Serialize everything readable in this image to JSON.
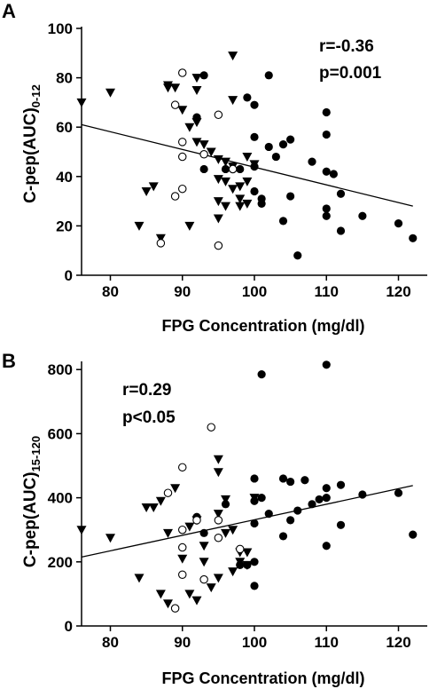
{
  "chart_data": [
    {
      "type": "scatter",
      "panel": "A",
      "xlabel": "FPG Concentration (mg/dl)",
      "ylabel_main": "C-pep(AUC)",
      "ylabel_sub": "0-12",
      "xlim": [
        76,
        124
      ],
      "ylim": [
        0,
        100
      ],
      "xticks": [
        80,
        90,
        100,
        110,
        120
      ],
      "yticks": [
        0,
        20,
        40,
        60,
        80,
        100
      ],
      "annotations": [
        "r=-0.36",
        "p=0.001"
      ],
      "trendline": {
        "x": [
          76,
          122
        ],
        "y": [
          61,
          28
        ]
      },
      "series": [
        {
          "marker": "triangle-down",
          "points": [
            [
              76,
              70
            ],
            [
              80,
              74
            ],
            [
              84,
              20
            ],
            [
              85,
              34
            ],
            [
              86,
              36
            ],
            [
              87,
              15
            ],
            [
              88,
              76
            ],
            [
              88,
              77
            ],
            [
              89,
              76
            ],
            [
              90,
              67
            ],
            [
              91,
              60
            ],
            [
              91,
              20
            ],
            [
              92,
              80
            ],
            [
              92,
              75
            ],
            [
              92,
              62
            ],
            [
              92,
              54
            ],
            [
              93,
              53
            ],
            [
              94,
              50
            ],
            [
              95,
              47
            ],
            [
              95,
              39
            ],
            [
              95,
              30
            ],
            [
              95,
              23
            ],
            [
              96,
              46
            ],
            [
              96,
              38
            ],
            [
              96,
              28
            ],
            [
              97,
              89
            ],
            [
              97,
              71
            ],
            [
              97,
              44
            ],
            [
              97,
              35
            ],
            [
              98,
              36
            ],
            [
              98,
              31
            ],
            [
              98,
              28
            ],
            [
              99,
              48
            ],
            [
              99,
              38
            ],
            [
              99,
              29
            ],
            [
              100,
              45
            ]
          ]
        },
        {
          "marker": "filled-circle",
          "points": [
            [
              92,
              64
            ],
            [
              93,
              81
            ],
            [
              93,
              43
            ],
            [
              96,
              43
            ],
            [
              98,
              43
            ],
            [
              99,
              72
            ],
            [
              100,
              69
            ],
            [
              100,
              56
            ],
            [
              100,
              44
            ],
            [
              100,
              34
            ],
            [
              101,
              31
            ],
            [
              101,
              29
            ],
            [
              102,
              81
            ],
            [
              102,
              52
            ],
            [
              103,
              48
            ],
            [
              104,
              53
            ],
            [
              104,
              22
            ],
            [
              105,
              55
            ],
            [
              105,
              32
            ],
            [
              106,
              8
            ],
            [
              108,
              46
            ],
            [
              110,
              66
            ],
            [
              110,
              57
            ],
            [
              110,
              42
            ],
            [
              110,
              27
            ],
            [
              110,
              24
            ],
            [
              111,
              41
            ],
            [
              112,
              33
            ],
            [
              112,
              18
            ],
            [
              115,
              24
            ],
            [
              120,
              21
            ],
            [
              122,
              15
            ]
          ]
        },
        {
          "marker": "open-circle",
          "points": [
            [
              87,
              13
            ],
            [
              89,
              69
            ],
            [
              89,
              32
            ],
            [
              90,
              82
            ],
            [
              90,
              54
            ],
            [
              90,
              48
            ],
            [
              90,
              35
            ],
            [
              93,
              49
            ],
            [
              95,
              65
            ],
            [
              95,
              12
            ],
            [
              97,
              43
            ]
          ]
        }
      ]
    },
    {
      "type": "scatter",
      "panel": "B",
      "xlabel": "FPG Concentration (mg/dl)",
      "ylabel_main": "C-pep(AUC)",
      "ylabel_sub": "15-120",
      "xlim": [
        76,
        124
      ],
      "ylim": [
        0,
        820
      ],
      "xticks": [
        80,
        90,
        100,
        110,
        120
      ],
      "yticks": [
        0,
        200,
        400,
        600,
        800
      ],
      "annotations": [
        "r=0.29",
        "p<0.05"
      ],
      "trendline": {
        "x": [
          76,
          122
        ],
        "y": [
          215,
          438
        ]
      },
      "series": [
        {
          "marker": "triangle-down",
          "points": [
            [
              76,
              300
            ],
            [
              80,
              275
            ],
            [
              84,
              150
            ],
            [
              85,
              370
            ],
            [
              86,
              370
            ],
            [
              87,
              390
            ],
            [
              87,
              100
            ],
            [
              88,
              290
            ],
            [
              88,
              70
            ],
            [
              89,
              430
            ],
            [
              90,
              210
            ],
            [
              91,
              310
            ],
            [
              91,
              100
            ],
            [
              92,
              80
            ],
            [
              92,
              330
            ],
            [
              93,
              250
            ],
            [
              93,
              200
            ],
            [
              94,
              120
            ],
            [
              95,
              520
            ],
            [
              95,
              480
            ],
            [
              95,
              350
            ],
            [
              95,
              150
            ],
            [
              96,
              395
            ],
            [
              96,
              290
            ],
            [
              97,
              300
            ],
            [
              97,
              170
            ],
            [
              98,
              230
            ],
            [
              98,
              200
            ],
            [
              99,
              190
            ],
            [
              99,
              230
            ],
            [
              100,
              400
            ]
          ]
        },
        {
          "marker": "filled-circle",
          "points": [
            [
              92,
              340
            ],
            [
              93,
              290
            ],
            [
              96,
              380
            ],
            [
              98,
              190
            ],
            [
              99,
              190
            ],
            [
              100,
              460
            ],
            [
              100,
              390
            ],
            [
              100,
              320
            ],
            [
              100,
              200
            ],
            [
              100,
              125
            ],
            [
              101,
              785
            ],
            [
              101,
              400
            ],
            [
              102,
              350
            ],
            [
              104,
              460
            ],
            [
              104,
              280
            ],
            [
              105,
              330
            ],
            [
              105,
              450
            ],
            [
              106,
              360
            ],
            [
              107,
              455
            ],
            [
              108,
              380
            ],
            [
              109,
              395
            ],
            [
              110,
              815
            ],
            [
              110,
              430
            ],
            [
              110,
              400
            ],
            [
              110,
              250
            ],
            [
              112,
              440
            ],
            [
              112,
              315
            ],
            [
              115,
              410
            ],
            [
              120,
              415
            ],
            [
              122,
              285
            ]
          ]
        },
        {
          "marker": "open-circle",
          "points": [
            [
              88,
              415
            ],
            [
              89,
              55
            ],
            [
              90,
              495
            ],
            [
              90,
              300
            ],
            [
              90,
              245
            ],
            [
              90,
              160
            ],
            [
              92,
              330
            ],
            [
              93,
              145
            ],
            [
              94,
              620
            ],
            [
              95,
              330
            ],
            [
              95,
              275
            ],
            [
              98,
              240
            ]
          ]
        }
      ]
    }
  ]
}
